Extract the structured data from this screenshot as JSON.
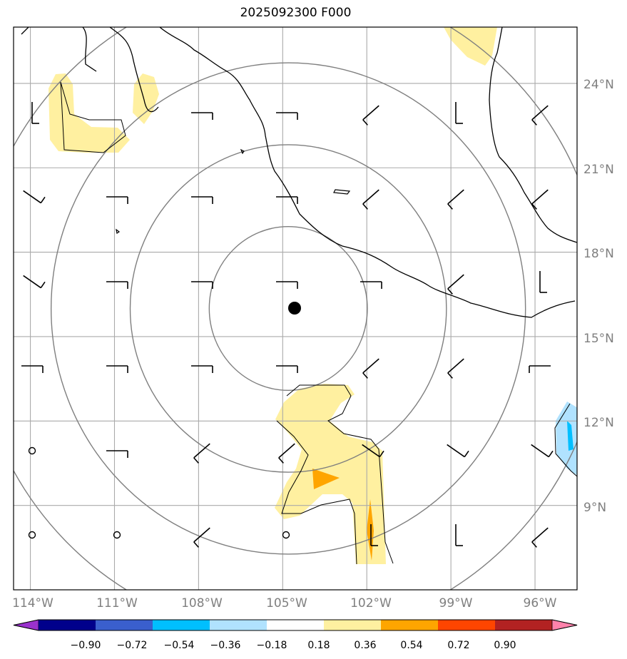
{
  "title": "2025092300 F000",
  "map": {
    "lon_range": [
      -114.6,
      -94.5
    ],
    "lat_range": [
      6.0,
      26.0
    ],
    "lon_ticks": [
      {
        "value": -114,
        "label": "114°W"
      },
      {
        "value": -111,
        "label": "111°W"
      },
      {
        "value": -108,
        "label": "108°W"
      },
      {
        "value": -105,
        "label": "105°W"
      },
      {
        "value": -102,
        "label": "102°W"
      },
      {
        "value": -99,
        "label": "99°W"
      },
      {
        "value": -96,
        "label": "96°W"
      }
    ],
    "lat_ticks": [
      {
        "value": 24,
        "label": "24°N"
      },
      {
        "value": 21,
        "label": "21°N"
      },
      {
        "value": 18,
        "label": "18°N"
      },
      {
        "value": 15,
        "label": "15°N"
      },
      {
        "value": 12,
        "label": "12°N"
      },
      {
        "value": 9,
        "label": "9°N"
      }
    ],
    "grid": true,
    "center": {
      "lon": -104.8,
      "lat": 16.0
    },
    "range_rings_deg": [
      3,
      6,
      9,
      12
    ]
  },
  "colorbar": {
    "extend": "both",
    "ticks": [
      "−0.90",
      "−0.72",
      "−0.54",
      "−0.36",
      "−0.18",
      "0.18",
      "0.36",
      "0.54",
      "0.72",
      "0.90"
    ],
    "colors": [
      "#9a32cd",
      "#00008b",
      "#3a5fcd",
      "#00bfff",
      "#b0e2ff",
      "#ffffff",
      "#fff0a0",
      "#ffa500",
      "#ff4500",
      "#b22222",
      "#ff82ab"
    ]
  },
  "colors": {
    "grid": "#aaaaaa",
    "rings": "#7f7f7f",
    "coast": "#000000",
    "positive_low": "#fff0a0",
    "positive_mid": "#ffa500",
    "negative": "#00bfff"
  }
}
